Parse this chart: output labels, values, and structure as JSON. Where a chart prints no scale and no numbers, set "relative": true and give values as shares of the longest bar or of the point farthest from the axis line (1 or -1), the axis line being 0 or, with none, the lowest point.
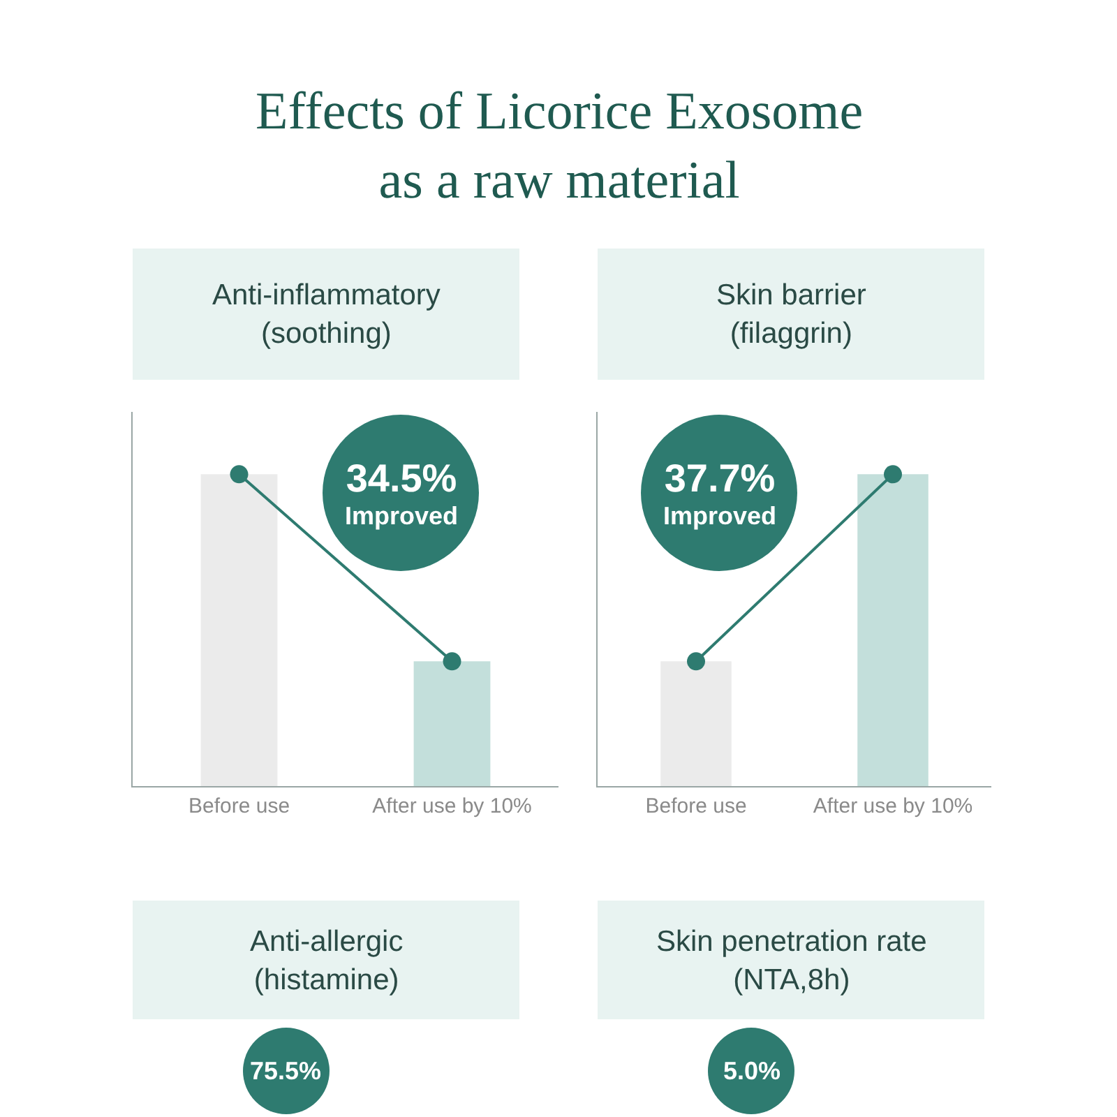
{
  "chart_data": [
    {
      "type": "other",
      "title": "Effects of Licorice Exosome\nas a raw material"
    },
    {
      "type": "bar",
      "title": "Anti-inflammatory\n(soothing)",
      "categories": [
        "Before use",
        "After use by 10%"
      ],
      "relative": true,
      "annotations": [
        "34.5%\nImproved"
      ],
      "series": [
        {
          "type": "bar",
          "colors": [
            "#ebebeb",
            "#c3dfdb"
          ],
          "values": [
            1,
            0.4
          ]
        },
        {
          "type": "line",
          "color": "#2e7b70",
          "marker": "circle",
          "values": [
            1,
            0.4
          ]
        }
      ]
    },
    {
      "type": "bar",
      "title": "Skin barrier\n(filaggrin)",
      "categories": [
        "Before use",
        "After use by 10%"
      ],
      "relative": true,
      "annotations": [
        "37.7%\nImproved"
      ],
      "series": [
        {
          "type": "bar",
          "colors": [
            "#ebebeb",
            "#c3dfdb"
          ],
          "values": [
            0.4,
            1
          ]
        },
        {
          "type": "line",
          "color": "#2e7b70",
          "marker": "circle",
          "values": [
            0.4,
            1
          ]
        }
      ]
    },
    {
      "type": "other",
      "title": "Anti-allergic\n(histamine)",
      "annotations": [
        "75.5%"
      ]
    },
    {
      "type": "other",
      "title": "Skin penetration rate\n(NTA,8h)",
      "annotations": [
        "5.0%"
      ]
    }
  ]
}
